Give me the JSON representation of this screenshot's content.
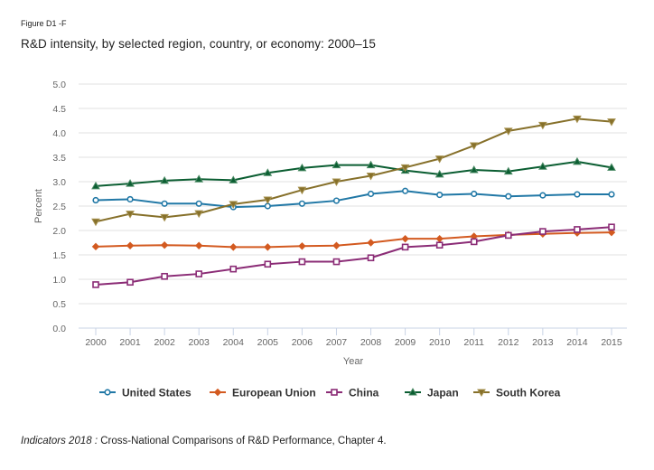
{
  "figure_label": "Figure D1 -F",
  "title": "R&D intensity, by selected region, country, or economy: 2000–15",
  "source": {
    "italic": "Indicators 2018 :",
    "text": " Cross-National Comparisons of R&D Performance, Chapter 4."
  },
  "chart_data": {
    "type": "line",
    "title": "R&D intensity, by selected region, country, or economy: 2000–15",
    "xlabel": "Year",
    "ylabel": "Percent",
    "x": [
      "2000",
      "2001",
      "2002",
      "2003",
      "2004",
      "2005",
      "2006",
      "2007",
      "2008",
      "2009",
      "2010",
      "2011",
      "2012",
      "2013",
      "2014",
      "2015"
    ],
    "ylim": [
      0,
      5
    ],
    "yticks": [
      "0.0",
      "0.5",
      "1.0",
      "1.5",
      "2.0",
      "2.5",
      "3.0",
      "3.5",
      "4.0",
      "4.5",
      "5.0"
    ],
    "grid": true,
    "legend_position": "bottom",
    "series": [
      {
        "name": "United States",
        "color": "#2178a6",
        "marker": "circle",
        "values": [
          2.62,
          2.64,
          2.55,
          2.55,
          2.48,
          2.5,
          2.55,
          2.61,
          2.75,
          2.81,
          2.73,
          2.75,
          2.7,
          2.72,
          2.74,
          2.74
        ]
      },
      {
        "name": "European Union",
        "color": "#d35a20",
        "marker": "diamond",
        "values": [
          1.67,
          1.69,
          1.7,
          1.69,
          1.66,
          1.66,
          1.68,
          1.69,
          1.75,
          1.83,
          1.83,
          1.88,
          1.91,
          1.93,
          1.95,
          1.96
        ]
      },
      {
        "name": "China",
        "color": "#8b2c76",
        "marker": "square",
        "values": [
          0.89,
          0.94,
          1.06,
          1.11,
          1.21,
          1.31,
          1.36,
          1.36,
          1.44,
          1.66,
          1.7,
          1.77,
          1.9,
          1.98,
          2.02,
          2.07
        ]
      },
      {
        "name": "Japan",
        "color": "#0b5e32",
        "marker": "triangle-up",
        "values": [
          2.91,
          2.96,
          3.02,
          3.05,
          3.03,
          3.18,
          3.28,
          3.34,
          3.34,
          3.23,
          3.15,
          3.24,
          3.21,
          3.31,
          3.41,
          3.29
        ]
      },
      {
        "name": "South Korea",
        "color": "#86702a",
        "marker": "triangle-down",
        "values": [
          2.18,
          2.34,
          2.27,
          2.35,
          2.54,
          2.63,
          2.83,
          3.0,
          3.12,
          3.29,
          3.47,
          3.74,
          4.04,
          4.16,
          4.29,
          4.23
        ]
      }
    ]
  }
}
